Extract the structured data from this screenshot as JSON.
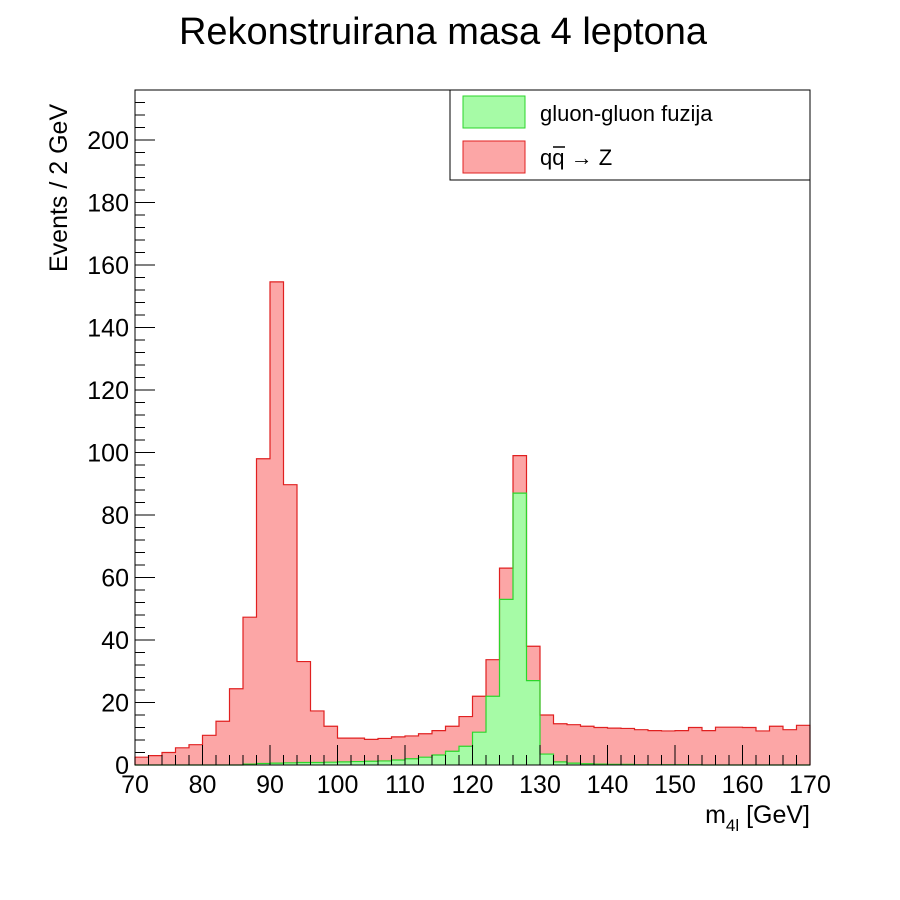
{
  "chart_data": {
    "type": "bar",
    "stacked": true,
    "title": "Rekonstruirana masa 4 leptona",
    "xlabel": "[GeV]",
    "xlabel_var": "m",
    "xlabel_sub": "4l",
    "ylabel": "Events / 2 GeV",
    "xlim": [
      70,
      170
    ],
    "ylim": [
      0,
      216
    ],
    "bin_width": 2,
    "bin_edges_start": 70,
    "x_ticks": [
      "70",
      "80",
      "90",
      "100",
      "110",
      "120",
      "130",
      "140",
      "150",
      "160",
      "170"
    ],
    "y_ticks": [
      "0",
      "20",
      "40",
      "60",
      "80",
      "100",
      "120",
      "140",
      "160",
      "180",
      "200"
    ],
    "grid": false,
    "legend_position": "top-right",
    "series": [
      {
        "name": "gluon-gluon fuzija",
        "fill": "#a6fba6",
        "stroke": "#2bd62b",
        "values": [
          0,
          0,
          0,
          0,
          0,
          0,
          0,
          0,
          0.3,
          0.5,
          0.6,
          0.7,
          0.8,
          0.8,
          0.9,
          1,
          1.1,
          1.2,
          1.3,
          1.6,
          2,
          2.5,
          3.2,
          4.4,
          6,
          10.5,
          22,
          53,
          87,
          27,
          3.5,
          1,
          0.6,
          0.4,
          0.3,
          0.2,
          0.2,
          0.1,
          0.1,
          0.1,
          0.1,
          0.1,
          0,
          0,
          0,
          0,
          0,
          0,
          0,
          0
        ]
      },
      {
        "name": "q̅q → Z",
        "legend_main": "qq",
        "legend_arrow": " → Z",
        "fill": "#fca6a6",
        "stroke": "#e02020",
        "values": [
          2.5,
          3,
          4,
          5.5,
          6.5,
          9.5,
          14,
          24.4,
          47,
          97.5,
          154,
          89,
          32.3,
          16.5,
          11.5,
          7.6,
          7.5,
          7,
          7.2,
          7.4,
          7.3,
          7.5,
          7.8,
          8,
          9.5,
          11.5,
          11.7,
          10,
          12,
          11,
          12.5,
          12.2,
          12.3,
          12,
          11.7,
          11.6,
          11.5,
          11.2,
          10.9,
          10.8,
          10.9,
          11.9,
          11,
          12.1,
          12.1,
          12,
          10.9,
          12.4,
          11.3,
          12.7
        ]
      }
    ]
  }
}
